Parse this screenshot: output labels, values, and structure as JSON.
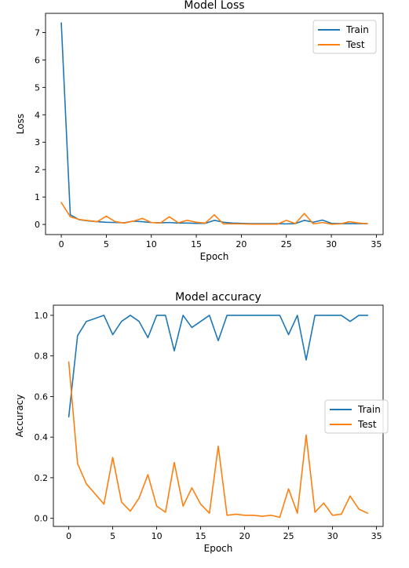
{
  "chart_data": [
    {
      "type": "line",
      "title": "Model Loss",
      "xlabel": "Epoch",
      "ylabel": "Loss",
      "xlim": [
        -1.75,
        35.75
      ],
      "ylim": [
        -0.37,
        7.7
      ],
      "xticks": [
        0,
        5,
        10,
        15,
        20,
        25,
        30,
        35
      ],
      "yticks": [
        0,
        1,
        2,
        3,
        4,
        5,
        6,
        7
      ],
      "legend": "top-right",
      "grid": false,
      "x": [
        0,
        1,
        2,
        3,
        4,
        5,
        6,
        7,
        8,
        9,
        10,
        11,
        12,
        13,
        14,
        15,
        16,
        17,
        18,
        19,
        20,
        21,
        22,
        23,
        24,
        25,
        26,
        27,
        28,
        29,
        30,
        31,
        32,
        33,
        34
      ],
      "series": [
        {
          "name": "Train",
          "color": "#1f77b4",
          "values": [
            7.35,
            0.35,
            0.17,
            0.13,
            0.1,
            0.08,
            0.07,
            0.06,
            0.12,
            0.1,
            0.07,
            0.06,
            0.07,
            0.05,
            0.05,
            0.04,
            0.04,
            0.15,
            0.08,
            0.05,
            0.04,
            0.03,
            0.03,
            0.03,
            0.03,
            0.02,
            0.03,
            0.15,
            0.08,
            0.16,
            0.04,
            0.03,
            0.03,
            0.03,
            0.03
          ]
        },
        {
          "name": "Test",
          "color": "#ff7f0e",
          "values": [
            0.8,
            0.28,
            0.18,
            0.14,
            0.1,
            0.3,
            0.1,
            0.05,
            0.12,
            0.22,
            0.07,
            0.05,
            0.28,
            0.06,
            0.15,
            0.08,
            0.05,
            0.35,
            0.02,
            0.02,
            0.02,
            0.01,
            0.01,
            0.01,
            0.01,
            0.15,
            0.03,
            0.4,
            0.02,
            0.07,
            0.01,
            0.02,
            0.1,
            0.05,
            0.03
          ]
        }
      ]
    },
    {
      "type": "line",
      "title": "Model accuracy",
      "xlabel": "Epoch",
      "ylabel": "Accuracy",
      "xlim": [
        -1.75,
        35.75
      ],
      "ylim": [
        -0.04,
        1.05
      ],
      "xticks": [
        0,
        5,
        10,
        15,
        20,
        25,
        30,
        35
      ],
      "yticks": [
        0.0,
        0.2,
        0.4,
        0.6,
        0.8,
        1.0
      ],
      "legend": "center-right",
      "grid": false,
      "x": [
        0,
        1,
        2,
        3,
        4,
        5,
        6,
        7,
        8,
        9,
        10,
        11,
        12,
        13,
        14,
        15,
        16,
        17,
        18,
        19,
        20,
        21,
        22,
        23,
        24,
        25,
        26,
        27,
        28,
        29,
        30,
        31,
        32,
        33,
        34
      ],
      "series": [
        {
          "name": "Train",
          "color": "#1f77b4",
          "values": [
            0.5,
            0.9,
            0.97,
            0.985,
            1.0,
            0.905,
            0.97,
            1.0,
            0.97,
            0.89,
            1.0,
            1.0,
            0.825,
            1.0,
            0.94,
            0.97,
            1.0,
            0.875,
            1.0,
            1.0,
            1.0,
            1.0,
            1.0,
            1.0,
            1.0,
            0.905,
            1.0,
            0.78,
            1.0,
            1.0,
            1.0,
            1.0,
            0.97,
            1.0,
            1.0
          ]
        },
        {
          "name": "Test",
          "color": "#ff7f0e",
          "values": [
            0.77,
            0.27,
            0.17,
            0.12,
            0.07,
            0.3,
            0.08,
            0.035,
            0.1,
            0.215,
            0.06,
            0.03,
            0.275,
            0.06,
            0.15,
            0.07,
            0.025,
            0.355,
            0.015,
            0.02,
            0.015,
            0.015,
            0.01,
            0.015,
            0.005,
            0.145,
            0.025,
            0.41,
            0.03,
            0.075,
            0.015,
            0.02,
            0.11,
            0.045,
            0.025
          ]
        }
      ]
    }
  ]
}
